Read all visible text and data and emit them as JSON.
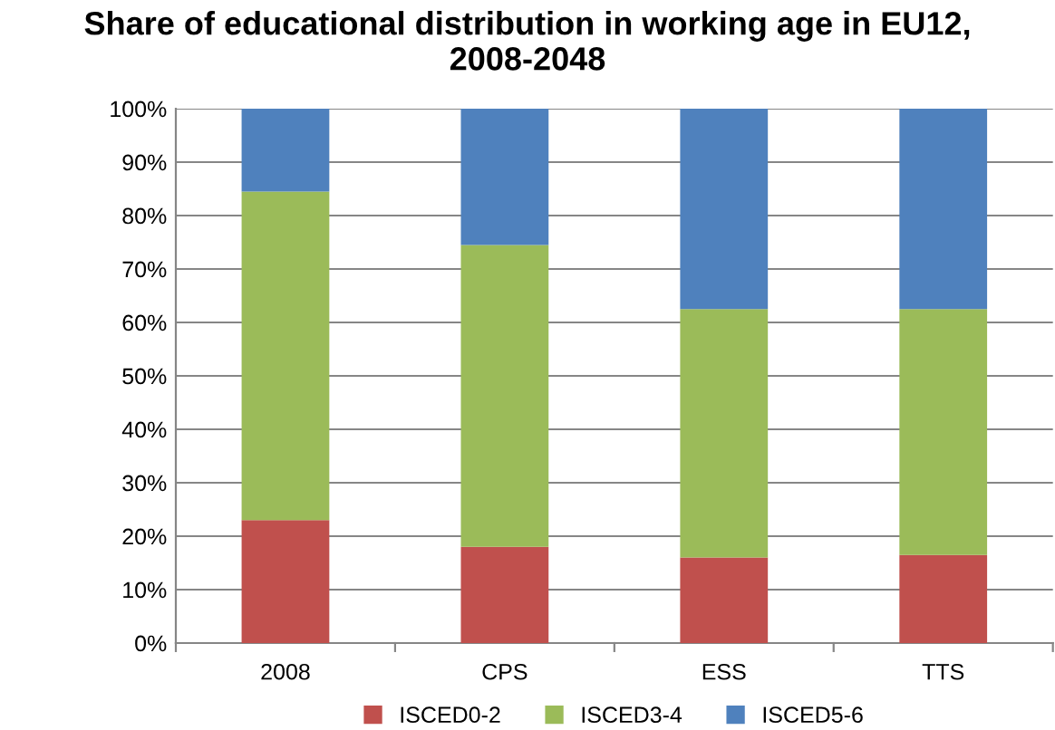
{
  "chart_data": {
    "type": "bar",
    "stacked": true,
    "title": "Share of educational distribution in working age in EU12,\n2008-2048",
    "categories": [
      "2008",
      "CPS",
      "ESS",
      "TTS"
    ],
    "series": [
      {
        "name": "ISCED0-2",
        "color": "#c0504d",
        "values": [
          23,
          18,
          16,
          16.5
        ]
      },
      {
        "name": "ISCED3-4",
        "color": "#9bbb59",
        "values": [
          61.5,
          56.5,
          46.5,
          46
        ]
      },
      {
        "name": "ISCED5-6",
        "color": "#4f81bd",
        "values": [
          15.5,
          25.5,
          37.5,
          37.5
        ]
      }
    ],
    "ylim": [
      0,
      100
    ],
    "yticks": [
      {
        "value": 0,
        "label": "0%"
      },
      {
        "value": 10,
        "label": "10%"
      },
      {
        "value": 20,
        "label": "20%"
      },
      {
        "value": 30,
        "label": "30%"
      },
      {
        "value": 40,
        "label": "40%"
      },
      {
        "value": 50,
        "label": "50%"
      },
      {
        "value": 60,
        "label": "60%"
      },
      {
        "value": 70,
        "label": "70%"
      },
      {
        "value": 80,
        "label": "80%"
      },
      {
        "value": 90,
        "label": "90%"
      },
      {
        "value": 100,
        "label": "100%"
      }
    ],
    "grid": "y",
    "legend": "bottom"
  }
}
